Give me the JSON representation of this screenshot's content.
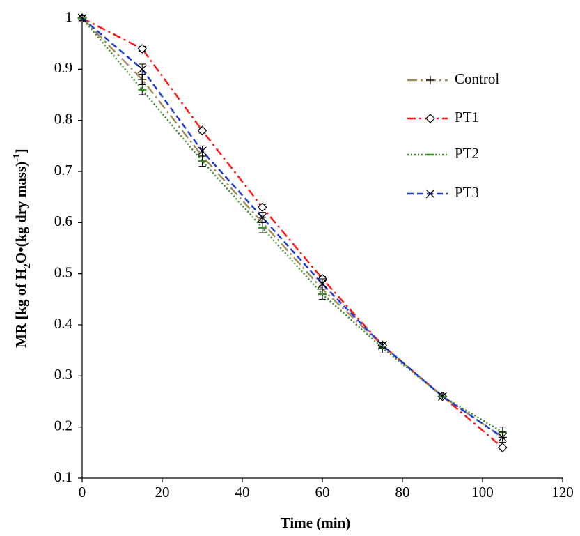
{
  "chart_data": {
    "type": "line",
    "x_label": "Time (min)",
    "y_label_parts": [
      "MR [kg of H",
      "2",
      "O•(kg dry mass)",
      "-1",
      "]"
    ],
    "x": [
      0,
      15,
      30,
      45,
      60,
      75,
      90,
      105
    ],
    "series": [
      {
        "name": "Control",
        "color": "#a38d5c",
        "dash": "14 5 3 5",
        "marker": "plus",
        "values": [
          1,
          0.88,
          0.73,
          0.6,
          0.47,
          0.36,
          0.26,
          0.18
        ],
        "errors": [
          0.005,
          0.01,
          0.01,
          0.01,
          0.01,
          0.005,
          0.005,
          0.01
        ]
      },
      {
        "name": "PT1",
        "color": "#ff1a1a",
        "dash": "12 5 3 5",
        "marker": "diamond",
        "values": [
          1,
          0.94,
          0.78,
          0.63,
          0.49,
          0.36,
          0.26,
          0.16
        ],
        "errors": [
          0.005,
          0.005,
          0.005,
          0.005,
          0.005,
          0.005,
          0.005,
          0.005
        ]
      },
      {
        "name": "PT2",
        "color": "#3a8f2a",
        "dash": "2 3",
        "marker": "dash",
        "values": [
          1,
          0.86,
          0.72,
          0.59,
          0.46,
          0.355,
          0.26,
          0.19
        ],
        "errors": [
          0.005,
          0.01,
          0.01,
          0.01,
          0.01,
          0.01,
          0.005,
          0.01
        ]
      },
      {
        "name": "PT3",
        "color": "#1e3fd8",
        "dash": "9 5",
        "marker": "cross",
        "values": [
          1,
          0.9,
          0.74,
          0.61,
          0.48,
          0.36,
          0.26,
          0.18
        ],
        "errors": [
          0.005,
          0.01,
          0.01,
          0.01,
          0.01,
          0.005,
          0.005,
          0.01
        ]
      }
    ],
    "xlim": [
      0,
      120
    ],
    "xticks": [
      0,
      20,
      40,
      60,
      80,
      100,
      120
    ],
    "ylim": [
      0.1,
      1
    ],
    "yticks": [
      0.1,
      0.2,
      0.3,
      0.4,
      0.5,
      0.6,
      0.7,
      0.8,
      0.9,
      1
    ],
    "grid": false,
    "legend": "right"
  }
}
